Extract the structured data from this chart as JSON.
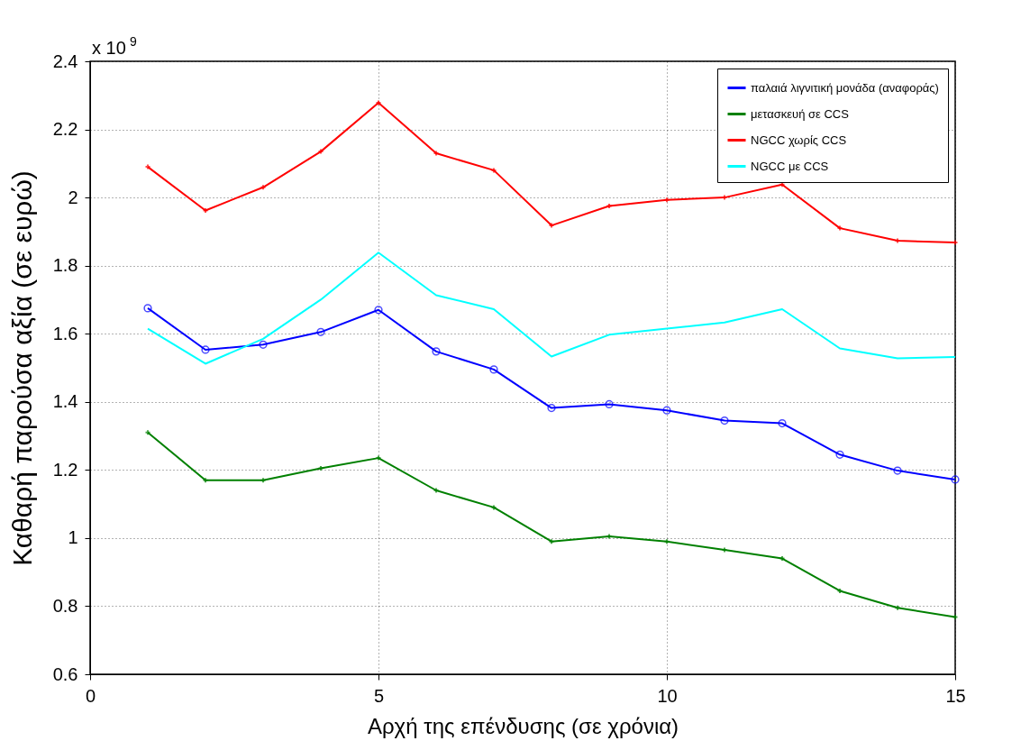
{
  "chart_data": {
    "type": "line",
    "xlabel": "Αρχή της επένδυσης (σε χρόνια)",
    "ylabel": "Καθαρή παρούσα αξία (σε ευρώ)",
    "annotations": [
      "x 10$^{9}$"
    ],
    "x": [
      1,
      2,
      3,
      4,
      5,
      6,
      7,
      8,
      9,
      10,
      11,
      12,
      13,
      14,
      15
    ],
    "series": [
      {
        "name": "παλαιά λιγνιτική μονάδα (αναφοράς)",
        "color": "#0000ff",
        "marker": "circle",
        "values": [
          1.675,
          1.553,
          1.568,
          1.605,
          1.67,
          1.548,
          1.495,
          1.382,
          1.393,
          1.375,
          1.345,
          1.337,
          1.245,
          1.198,
          1.172
        ]
      },
      {
        "name": "μετασκευή σε CCS",
        "color": "#008000",
        "marker": "cross",
        "values": [
          1.31,
          1.17,
          1.17,
          1.205,
          1.235,
          1.14,
          1.09,
          0.99,
          1.005,
          0.99,
          0.965,
          0.94,
          0.845,
          0.795,
          0.768
        ]
      },
      {
        "name": "NGCC χωρίς CCS",
        "color": "#ff0000",
        "marker": "cross",
        "values": [
          2.09,
          1.962,
          2.03,
          2.135,
          2.278,
          2.13,
          2.08,
          1.918,
          1.975,
          1.993,
          2.0,
          2.038,
          1.91,
          1.873,
          1.868
        ]
      },
      {
        "name": "NGCC με CCS",
        "color": "#00ffff",
        "marker": "none",
        "values": [
          1.615,
          1.512,
          1.585,
          1.7,
          1.838,
          1.713,
          1.672,
          1.533,
          1.597,
          1.615,
          1.633,
          1.672,
          1.557,
          1.528,
          1.532
        ]
      }
    ],
    "xlim": [
      0,
      15
    ],
    "xticks": [
      0,
      5,
      10,
      15
    ],
    "ylim": [
      0.6,
      2.4
    ],
    "yticks": [
      0.6,
      0.8,
      1,
      1.2,
      1.4,
      1.6,
      1.8,
      2,
      2.2,
      2.4
    ],
    "grid": true,
    "legend": "top right",
    "line_style": "solid"
  }
}
